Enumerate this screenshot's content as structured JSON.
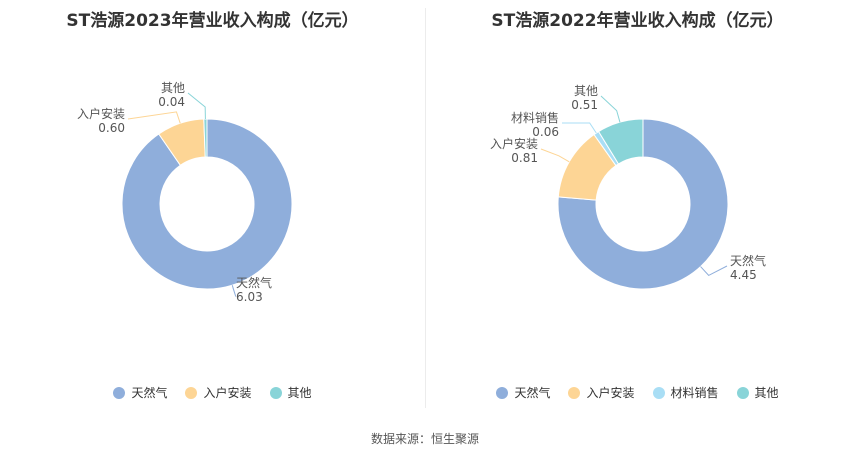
{
  "chart_data": [
    {
      "type": "pie",
      "donut": true,
      "title": "ST浩源2023年营业收入构成（亿元）",
      "categories": [
        "天然气",
        "入户安装",
        "其他"
      ],
      "values": [
        6.03,
        0.6,
        0.04
      ],
      "value_labels": [
        "6.03",
        "0.60",
        "0.04"
      ],
      "colors": [
        "#8FAEDB",
        "#FDD595",
        "#89D4D8"
      ],
      "legend_position": "bottom"
    },
    {
      "type": "pie",
      "donut": true,
      "title": "ST浩源2022年营业收入构成（亿元）",
      "categories": [
        "天然气",
        "入户安装",
        "材料销售",
        "其他"
      ],
      "values": [
        4.45,
        0.81,
        0.06,
        0.51
      ],
      "value_labels": [
        "4.45",
        "0.81",
        "0.06",
        "0.51"
      ],
      "colors": [
        "#8FAEDB",
        "#FDD595",
        "#A9DEF5",
        "#89D4D8"
      ],
      "legend_position": "bottom"
    }
  ],
  "source": "数据来源：恒生聚源"
}
